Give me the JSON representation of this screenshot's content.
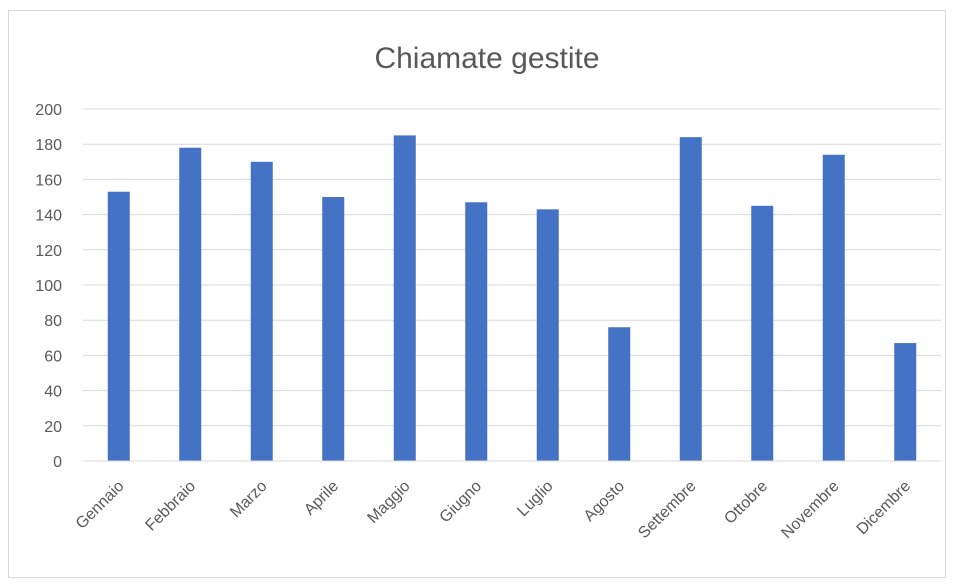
{
  "chart_data": {
    "type": "bar",
    "title": "Chiamate gestite",
    "xlabel": "",
    "ylabel": "",
    "ylim": [
      0,
      200
    ],
    "y_ticks": [
      "0",
      "20",
      "40",
      "60",
      "80",
      "100",
      "120",
      "140",
      "160",
      "180",
      "200"
    ],
    "categories": [
      "Gennaio",
      "Febbraio",
      "Marzo",
      "Aprile",
      "Maggio",
      "Giugno",
      "Luglio",
      "Agosto",
      "Settembre",
      "Ottobre",
      "Novembre",
      "Dicembre"
    ],
    "values": [
      153,
      178,
      170,
      150,
      185,
      147,
      143,
      76,
      184,
      145,
      174,
      67
    ],
    "grid": true,
    "legend": "none",
    "colors": {
      "bar": "#4472C4",
      "grid": "#d9d9d9",
      "text": "#595959"
    }
  }
}
